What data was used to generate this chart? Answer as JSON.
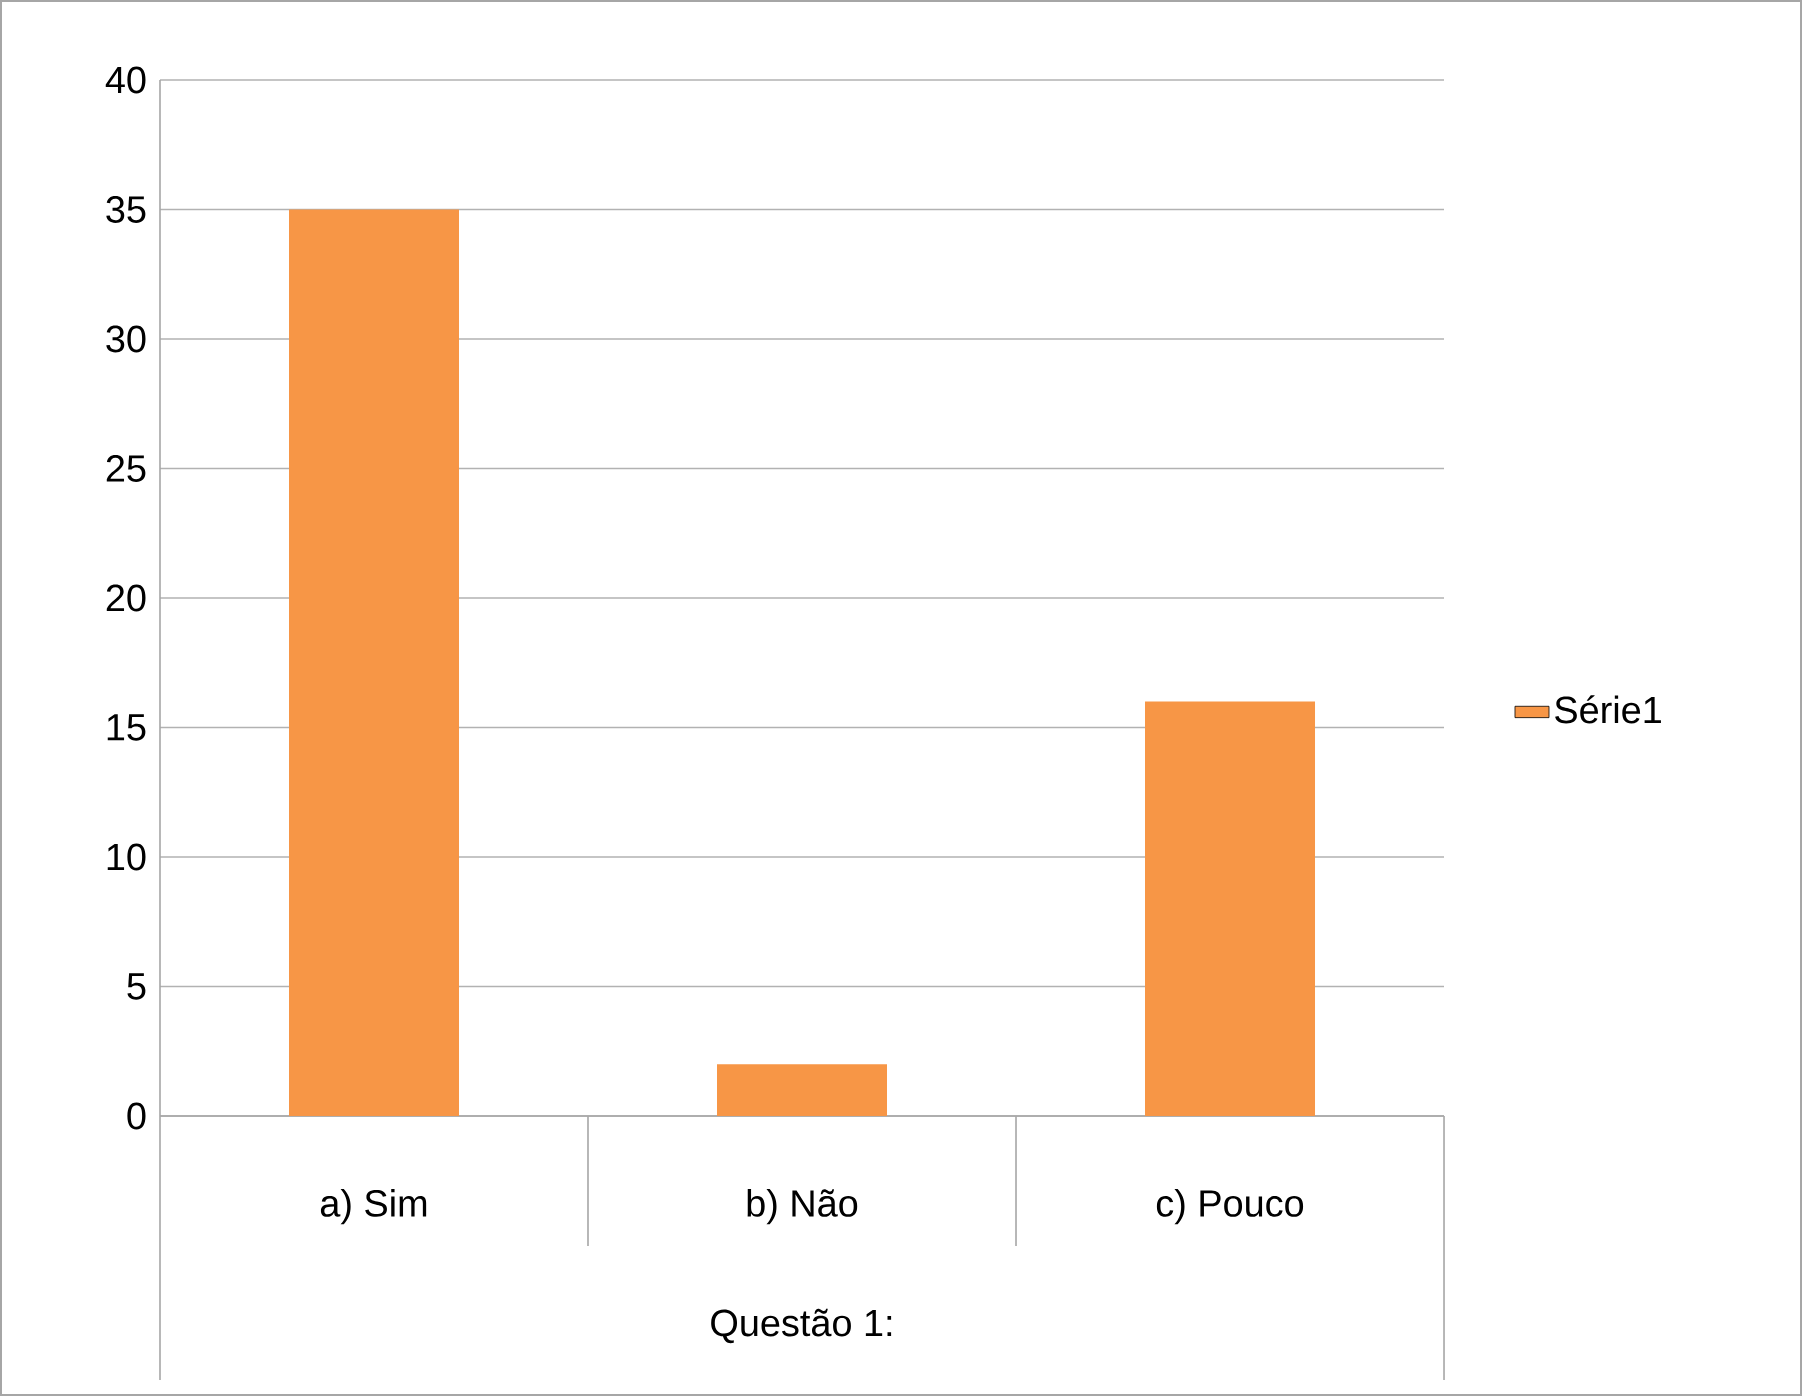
{
  "chart_data": {
    "type": "bar",
    "xlabel": "Questão 1:",
    "categories": [
      "a) Sim",
      "b) Não",
      "c) Pouco"
    ],
    "series": [
      {
        "name": "Série1",
        "color": "#f79646",
        "values": [
          35,
          2,
          16
        ]
      }
    ],
    "ylim": [
      0,
      40
    ],
    "yticks": [
      0,
      5,
      10,
      15,
      20,
      25,
      30,
      35,
      40
    ],
    "grid": "y",
    "legend": "right"
  }
}
